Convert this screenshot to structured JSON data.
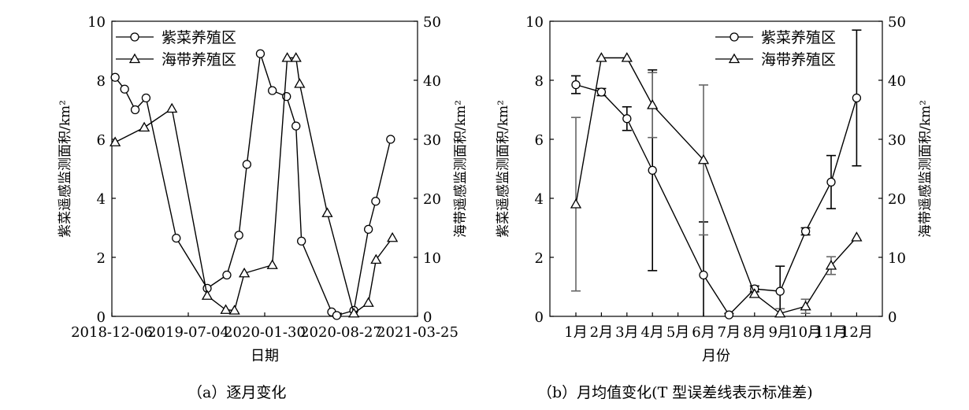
{
  "chart_data": [
    {
      "type": "line",
      "panel_caption": "（a）逐月变化",
      "xlabel": "日期",
      "ylabel_left": "紫菜遥感监测面积/km²",
      "ylabel_right": "海带遥感监测面积/km²",
      "x_ticks": [
        "2018-12-06",
        "2019-07-04",
        "2020-01-30",
        "2020-08-27",
        "2021-03-25"
      ],
      "x_range": [
        "2018-12-06",
        "2021-03-25"
      ],
      "ylim_left": [
        0,
        10
      ],
      "ylim_right": [
        0,
        50
      ],
      "yticks_left": [
        "0",
        "2",
        "4",
        "6",
        "8",
        "10"
      ],
      "yticks_right": [
        "0",
        "10",
        "20",
        "30",
        "40",
        "50"
      ],
      "legend_position": "top-left",
      "series": [
        {
          "name": "紫菜养殖区",
          "marker": "circle",
          "axis": "left",
          "points": [
            {
              "x": "2018-12-15",
              "y": 8.1
            },
            {
              "x": "2019-01-10",
              "y": 7.7
            },
            {
              "x": "2019-02-08",
              "y": 7.0
            },
            {
              "x": "2019-03-10",
              "y": 7.4
            },
            {
              "x": "2019-06-01",
              "y": 2.65
            },
            {
              "x": "2019-08-25",
              "y": 0.95
            },
            {
              "x": "2019-10-18",
              "y": 1.4
            },
            {
              "x": "2019-11-20",
              "y": 2.75
            },
            {
              "x": "2019-12-12",
              "y": 5.15
            },
            {
              "x": "2020-01-18",
              "y": 8.9
            },
            {
              "x": "2020-02-20",
              "y": 7.65
            },
            {
              "x": "2020-03-30",
              "y": 7.45
            },
            {
              "x": "2020-04-25",
              "y": 6.45
            },
            {
              "x": "2020-05-10",
              "y": 2.55
            },
            {
              "x": "2020-08-01",
              "y": 0.15
            },
            {
              "x": "2020-08-15",
              "y": 0.03
            },
            {
              "x": "2020-10-01",
              "y": 0.2
            },
            {
              "x": "2020-11-10",
              "y": 2.95
            },
            {
              "x": "2020-11-30",
              "y": 3.9
            },
            {
              "x": "2021-01-10",
              "y": 6.0
            }
          ]
        },
        {
          "name": "海带养殖区",
          "marker": "triangle",
          "axis": "right",
          "points": [
            {
              "x": "2018-12-15",
              "y": 29.5
            },
            {
              "x": "2019-03-05",
              "y": 32.0
            },
            {
              "x": "2019-05-20",
              "y": 35.2
            },
            {
              "x": "2019-08-25",
              "y": 3.5
            },
            {
              "x": "2019-10-15",
              "y": 1.1
            },
            {
              "x": "2019-11-08",
              "y": 1.0
            },
            {
              "x": "2019-12-05",
              "y": 7.3
            },
            {
              "x": "2020-02-20",
              "y": 8.7
            },
            {
              "x": "2020-04-01",
              "y": 43.8
            },
            {
              "x": "2020-04-25",
              "y": 43.8
            },
            {
              "x": "2020-05-05",
              "y": 39.4
            },
            {
              "x": "2020-07-20",
              "y": 17.5
            },
            {
              "x": "2020-10-01",
              "y": 0.5
            },
            {
              "x": "2020-11-10",
              "y": 2.3
            },
            {
              "x": "2020-12-01",
              "y": 9.6
            },
            {
              "x": "2021-01-15",
              "y": 13.3
            }
          ]
        }
      ]
    },
    {
      "type": "line",
      "panel_caption": "（b）月均值变化(T 型误差线表示标准差)",
      "xlabel": "月份",
      "ylabel_left": "紫菜遥感监测面积/km²",
      "ylabel_right": "海带遥感监测面积/km²",
      "categories": [
        "1月",
        "2月",
        "3月",
        "4月",
        "5月",
        "6月",
        "7月",
        "8月",
        "9月",
        "10月",
        "11月",
        "12月"
      ],
      "ylim_left": [
        0,
        10
      ],
      "ylim_right": [
        0,
        50
      ],
      "yticks_left": [
        "0",
        "2",
        "4",
        "6",
        "8",
        "10"
      ],
      "yticks_right": [
        "0",
        "10",
        "20",
        "30",
        "40",
        "50"
      ],
      "legend_position": "top-right",
      "series": [
        {
          "name": "紫菜养殖区",
          "marker": "circle",
          "axis": "left",
          "values": [
            7.85,
            7.6,
            6.7,
            4.95,
            null,
            1.4,
            0.05,
            0.93,
            0.85,
            2.88,
            4.55,
            7.4
          ],
          "error": [
            0.3,
            0.12,
            0.4,
            3.4,
            null,
            1.8,
            0.05,
            0.1,
            0.85,
            0.12,
            0.9,
            2.3
          ]
        },
        {
          "name": "海带养殖区",
          "marker": "triangle",
          "axis": "right",
          "values": [
            19.0,
            43.8,
            43.8,
            35.8,
            null,
            26.5,
            null,
            3.8,
            0.5,
            1.7,
            8.6,
            13.4
          ],
          "error": [
            14.7,
            null,
            null,
            5.5,
            null,
            12.7,
            null,
            null,
            0.8,
            1.2,
            1.5,
            null
          ]
        }
      ]
    }
  ]
}
